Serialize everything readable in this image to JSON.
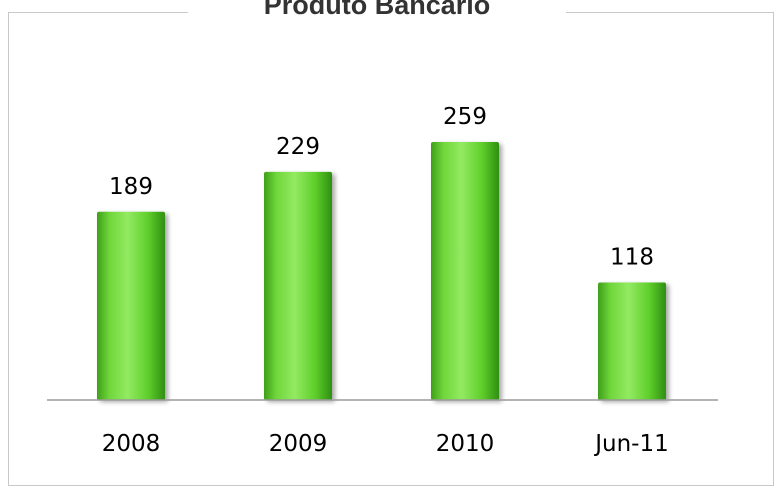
{
  "chart_data": {
    "type": "bar",
    "title": "Produto Bancário",
    "categories": [
      "2008",
      "2009",
      "2010",
      "Jun-11"
    ],
    "values": [
      189,
      229,
      259,
      118
    ],
    "xlabel": "",
    "ylabel": "",
    "ylim": [
      0,
      300
    ],
    "grid": false,
    "legend": "none",
    "data_labels": true,
    "colors": {
      "bar_light": "#8ee65a",
      "bar_mid": "#5fcf2b",
      "bar_dark": "#2f8f12",
      "axis": "#9a9a9a"
    }
  }
}
